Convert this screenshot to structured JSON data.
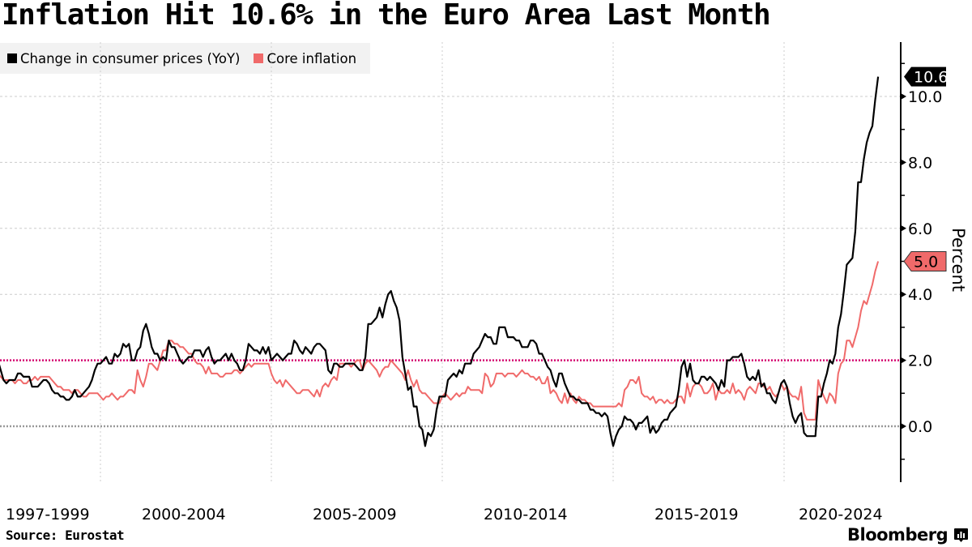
{
  "title": "Inflation Hit 10.6% in the Euro Area Last Month",
  "source": "Source: Eurostat",
  "brand": "Bloomberg",
  "brand_icon": "bloomberg-chart-icon",
  "colors": {
    "headline": "#000000",
    "core": "#f06a6a",
    "target_line": "#d4006f",
    "zero_line": "#999999",
    "grid": "#cccccc",
    "legend_bg": "#f2f2f2"
  },
  "chart_data": {
    "type": "line",
    "title": "Inflation Hit 10.6% in the Euro Area Last Month",
    "xlabel": "",
    "ylabel": "Percent",
    "x_start": "1997-01",
    "x_end": "2022-10",
    "x_frequency": "monthly",
    "x_tick_labels": [
      "1997-1999",
      "2000-2004",
      "2005-2009",
      "2010-2014",
      "2015-2019",
      "2020-2024"
    ],
    "x_gridlines_years": [
      2000,
      2005,
      2010,
      2015,
      2020
    ],
    "ylim": [
      -1.7,
      11.4
    ],
    "y_ticks": [
      0.0,
      2.0,
      4.0,
      6.0,
      8.0,
      10.0
    ],
    "y_tick_labels": [
      "0.0",
      "2.0",
      "4.0",
      "6.0",
      "8.0",
      "10.0"
    ],
    "grid": true,
    "legend_position": "top-left",
    "reference_lines": [
      {
        "value": 2.0,
        "style": "dotted",
        "color": "#d4006f"
      },
      {
        "value": 0.0,
        "style": "dotted",
        "color": "#999999"
      }
    ],
    "series": [
      {
        "name": "Change in consumer prices (YoY)",
        "color": "#000000",
        "last_value_label": "10.6",
        "values": [
          2.0,
          1.7,
          1.4,
          1.3,
          1.4,
          1.4,
          1.4,
          1.6,
          1.6,
          1.5,
          1.5,
          1.5,
          1.2,
          1.2,
          1.2,
          1.3,
          1.4,
          1.4,
          1.3,
          1.1,
          1.0,
          1.0,
          0.9,
          0.9,
          0.8,
          0.8,
          0.9,
          1.1,
          0.9,
          0.9,
          1.0,
          1.1,
          1.2,
          1.4,
          1.7,
          1.9,
          1.9,
          2.0,
          2.1,
          1.9,
          1.9,
          2.2,
          2.1,
          2.2,
          2.5,
          2.4,
          2.5,
          2.0,
          2.0,
          2.3,
          2.4,
          2.9,
          3.1,
          2.8,
          2.4,
          2.2,
          2.2,
          2.0,
          2.1,
          2.0,
          2.6,
          2.4,
          2.4,
          2.2,
          2.0,
          1.9,
          2.0,
          2.1,
          2.1,
          2.3,
          2.3,
          2.3,
          2.1,
          2.3,
          2.4,
          2.1,
          1.9,
          2.0,
          2.0,
          2.1,
          2.2,
          2.0,
          2.2,
          2.0,
          1.9,
          1.7,
          1.7,
          2.0,
          2.5,
          2.4,
          2.3,
          2.3,
          2.2,
          2.4,
          2.2,
          2.4,
          2.0,
          2.1,
          2.2,
          2.1,
          2.0,
          2.1,
          2.2,
          2.2,
          2.6,
          2.5,
          2.3,
          2.2,
          2.4,
          2.3,
          2.2,
          2.4,
          2.5,
          2.5,
          2.4,
          2.3,
          1.7,
          1.6,
          1.9,
          1.9,
          1.8,
          1.8,
          1.9,
          1.9,
          1.9,
          1.9,
          1.8,
          1.7,
          1.7,
          2.1,
          3.1,
          3.1,
          3.2,
          3.3,
          3.6,
          3.3,
          3.7,
          4.0,
          4.1,
          3.8,
          3.6,
          3.2,
          2.1,
          1.6,
          1.1,
          1.2,
          0.6,
          0.6,
          0.0,
          -0.1,
          -0.6,
          -0.2,
          -0.3,
          -0.1,
          0.5,
          0.9,
          0.9,
          0.9,
          1.4,
          1.5,
          1.6,
          1.5,
          1.7,
          1.6,
          1.9,
          1.9,
          1.9,
          2.2,
          2.3,
          2.4,
          2.6,
          2.8,
          2.7,
          2.7,
          2.5,
          2.5,
          3.0,
          3.0,
          3.0,
          2.7,
          2.7,
          2.7,
          2.6,
          2.6,
          2.4,
          2.4,
          2.4,
          2.6,
          2.6,
          2.5,
          2.2,
          2.2,
          2.0,
          1.8,
          1.7,
          1.4,
          1.2,
          1.6,
          1.6,
          1.3,
          1.1,
          0.9,
          0.9,
          0.8,
          0.8,
          0.7,
          0.7,
          0.7,
          0.5,
          0.5,
          0.4,
          0.4,
          0.3,
          0.4,
          0.3,
          -0.2,
          -0.6,
          -0.3,
          -0.1,
          0.0,
          0.3,
          0.2,
          0.2,
          0.1,
          -0.1,
          0.1,
          0.1,
          0.2,
          0.3,
          -0.2,
          0.0,
          -0.2,
          -0.1,
          0.1,
          0.2,
          0.2,
          0.4,
          0.5,
          0.6,
          1.1,
          1.8,
          2.0,
          1.5,
          1.9,
          1.4,
          1.3,
          1.3,
          1.5,
          1.5,
          1.4,
          1.5,
          1.4,
          1.3,
          1.1,
          1.4,
          1.2,
          2.0,
          2.0,
          2.1,
          2.1,
          2.1,
          2.2,
          1.9,
          1.5,
          1.4,
          1.5,
          1.4,
          1.7,
          1.2,
          1.3,
          1.0,
          1.0,
          0.8,
          0.7,
          1.0,
          1.3,
          1.4,
          1.2,
          0.7,
          0.3,
          0.1,
          0.3,
          0.4,
          -0.2,
          -0.3,
          -0.3,
          -0.3,
          -0.3,
          0.9,
          0.9,
          1.3,
          1.6,
          2.0,
          1.9,
          2.2,
          3.0,
          3.4,
          4.1,
          4.9,
          5.0,
          5.1,
          5.9,
          7.4,
          7.4,
          8.1,
          8.6,
          8.9,
          9.1,
          9.9,
          10.6
        ]
      },
      {
        "name": "Core inflation",
        "color": "#f06a6a",
        "last_value_label": "5.0",
        "values": [
          1.6,
          1.5,
          1.4,
          1.4,
          1.4,
          1.4,
          1.3,
          1.4,
          1.4,
          1.3,
          1.3,
          1.4,
          1.4,
          1.5,
          1.4,
          1.5,
          1.5,
          1.5,
          1.5,
          1.4,
          1.3,
          1.2,
          1.2,
          1.1,
          1.1,
          1.1,
          1.0,
          1.1,
          1.1,
          1.0,
          0.9,
          0.9,
          1.0,
          1.0,
          1.0,
          1.0,
          0.9,
          0.8,
          0.9,
          0.9,
          1.0,
          0.9,
          0.8,
          0.9,
          0.9,
          1.0,
          1.1,
          1.1,
          1.0,
          1.7,
          1.4,
          1.2,
          1.5,
          1.9,
          1.9,
          1.8,
          1.7,
          2.0,
          2.3,
          2.3,
          2.6,
          2.6,
          2.5,
          2.5,
          2.4,
          2.4,
          2.3,
          2.2,
          2.2,
          2.0,
          1.9,
          1.9,
          1.8,
          1.6,
          1.8,
          1.6,
          1.6,
          1.6,
          1.5,
          1.5,
          1.6,
          1.6,
          1.6,
          1.7,
          1.7,
          1.6,
          1.7,
          1.8,
          1.9,
          1.8,
          1.9,
          1.9,
          1.9,
          1.9,
          1.9,
          1.9,
          1.6,
          1.4,
          1.3,
          1.4,
          1.2,
          1.4,
          1.3,
          1.2,
          1.1,
          1.0,
          1.0,
          1.1,
          1.1,
          1.1,
          1.0,
          0.9,
          1.1,
          0.9,
          1.2,
          1.3,
          1.2,
          1.4,
          1.5,
          1.4,
          1.9,
          1.9,
          1.9,
          1.9,
          1.8,
          1.9,
          2.0,
          2.0,
          1.7,
          1.9,
          2.0,
          1.9,
          1.8,
          1.7,
          1.5,
          1.7,
          1.8,
          1.8,
          2.0,
          1.9,
          1.8,
          1.7,
          1.6,
          1.4,
          1.7,
          1.4,
          1.2,
          1.4,
          1.1,
          1.0,
          1.0,
          0.9,
          0.8,
          0.7,
          0.7,
          0.7,
          0.9,
          1.0,
          0.9,
          0.8,
          0.9,
          1.0,
          0.9,
          1.0,
          1.0,
          1.2,
          1.1,
          1.1,
          1.1,
          1.1,
          1.0,
          1.6,
          1.5,
          1.2,
          1.3,
          1.6,
          1.6,
          1.6,
          1.5,
          1.6,
          1.6,
          1.6,
          1.5,
          1.6,
          1.7,
          1.6,
          1.6,
          1.5,
          1.5,
          1.4,
          1.5,
          1.3,
          1.3,
          1.5,
          1.0,
          1.1,
          1.0,
          0.8,
          0.7,
          1.0,
          0.7,
          1.0,
          0.8,
          0.7,
          0.9,
          0.8,
          0.8,
          0.7,
          0.7,
          0.6,
          0.6,
          0.6,
          0.6,
          0.6,
          0.6,
          0.6,
          0.6,
          0.6,
          0.7,
          0.6,
          1.1,
          1.2,
          1.4,
          1.4,
          1.3,
          1.5,
          1.0,
          0.9,
          0.9,
          0.8,
          0.9,
          0.7,
          0.8,
          0.8,
          0.7,
          0.8,
          0.7,
          0.7,
          0.8,
          0.9,
          0.9,
          0.7,
          1.3,
          0.9,
          1.2,
          1.3,
          1.3,
          1.2,
          1.0,
          1.0,
          1.1,
          1.3,
          0.8,
          1.1,
          1.0,
          1.0,
          1.1,
          1.0,
          1.3,
          1.0,
          1.1,
          1.0,
          0.8,
          1.1,
          1.2,
          1.1,
          1.0,
          1.3,
          1.3,
          1.2,
          1.1,
          1.2,
          1.0,
          0.9,
          1.0,
          1.3,
          1.1,
          1.2,
          1.0,
          0.9,
          0.9,
          0.8,
          1.2,
          0.4,
          0.2,
          0.2,
          0.2,
          0.2,
          1.4,
          1.1,
          0.9,
          0.7,
          1.0,
          0.9,
          0.7,
          1.6,
          1.9,
          2.0,
          2.6,
          2.6,
          2.4,
          2.7,
          3.0,
          3.5,
          3.8,
          3.7,
          4.0,
          4.3,
          4.7,
          5.0
        ]
      }
    ]
  }
}
